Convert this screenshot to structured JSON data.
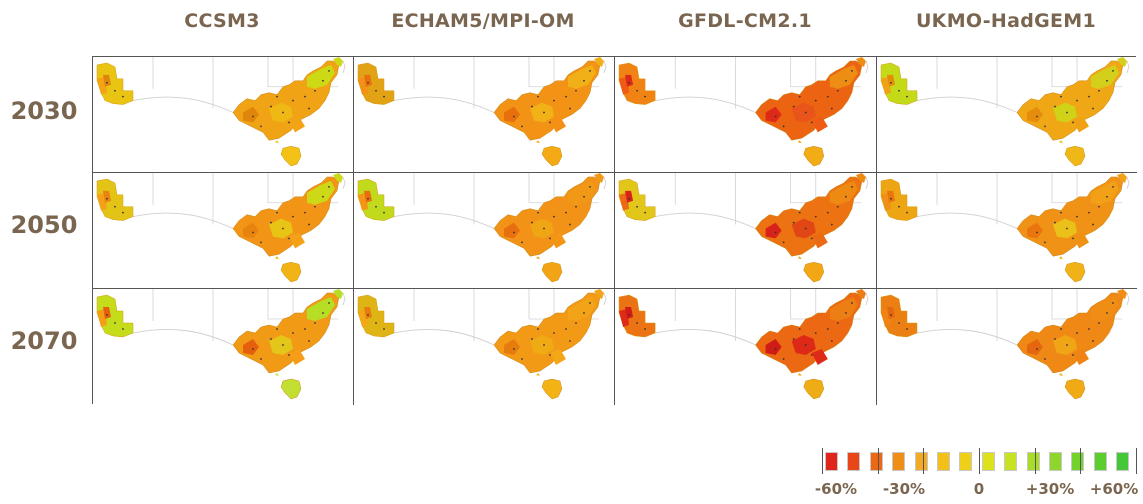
{
  "columns": [
    "CCSM3",
    "ECHAM5/MPI-OM",
    "GFDL-CM2.1",
    "UKMO-HadGEM1"
  ],
  "rows": [
    "2030",
    "2050",
    "2070"
  ],
  "panel_colors": [
    [
      {
        "wa": "#e9c412",
        "west": "#f3a316",
        "east": "#f0a314",
        "mid": "#f0b814",
        "east_hi": "#cdd915",
        "tas": "#f3c215",
        "spot": "#e0850b"
      },
      {
        "wa": "#e2a215",
        "west": "#f49016",
        "east": "#f29315",
        "mid": "#f3b118",
        "east_hi": "#f2b018",
        "tas": "#f4aa15",
        "spot": "#e7700c"
      },
      {
        "wa": "#f08314",
        "west": "#ef5a14",
        "east": "#ec6412",
        "mid": "#e8541a",
        "east_hi": "#ee8d14",
        "tas": "#f2ac15",
        "spot": "#dc2a16"
      },
      {
        "wa": "#c4da18",
        "west": "#eea214",
        "east": "#f0a715",
        "mid": "#cfd217",
        "east_hi": "#d4cf1a",
        "tas": "#efb816",
        "spot": "#e58c0d"
      }
    ],
    [
      {
        "wa": "#e3c316",
        "west": "#f4a118",
        "east": "#f29516",
        "mid": "#e8c515",
        "east_hi": "#cdd816",
        "tas": "#f1b315",
        "spot": "#e8840d"
      },
      {
        "wa": "#c1da1b",
        "west": "#f49516",
        "east": "#f29317",
        "mid": "#f0a515",
        "east_hi": "#f19817",
        "tas": "#f2a414",
        "spot": "#e76f10"
      },
      {
        "wa": "#e2c619",
        "west": "#eb6a14",
        "east": "#ed7312",
        "mid": "#e04714",
        "east_hi": "#ee8a12",
        "tas": "#f3a715",
        "spot": "#d8231a"
      },
      {
        "wa": "#eea514",
        "west": "#ef9114",
        "east": "#f09216",
        "mid": "#e9c119",
        "east_hi": "#f2a017",
        "tas": "#f1b118",
        "spot": "#ea740e"
      }
    ],
    [
      {
        "wa": "#c5dc1b",
        "west": "#f59d17",
        "east": "#f09a16",
        "mid": "#e4c61a",
        "east_hi": "#b5de24",
        "tas": "#c3e032",
        "spot": "#e55f0d"
      },
      {
        "wa": "#dfb415",
        "west": "#f3a717",
        "east": "#f29916",
        "mid": "#efaa14",
        "east_hi": "#f3a317",
        "tas": "#f3b315",
        "spot": "#e67c0e"
      },
      {
        "wa": "#eb7314",
        "west": "#df2a17",
        "east": "#ed6813",
        "mid": "#dd2918",
        "east_hi": "#ec7e14",
        "tas": "#efad15",
        "spot": "#cf1c17"
      },
      {
        "wa": "#ec7f12",
        "west": "#ef8414",
        "east": "#f08816",
        "mid": "#f0a516",
        "east_hi": "#ef8d14",
        "tas": "#f0aa16",
        "spot": "#e4670f"
      }
    ]
  ],
  "legend": {
    "swatch_colors": [
      "#e0251d",
      "#e84518",
      "#ed6812",
      "#ef8f18",
      "#f2ab22",
      "#f3c01a",
      "#efd019",
      "#dde21c",
      "#c6e223",
      "#a8dc28",
      "#8fd62c",
      "#74d22c",
      "#5ccd2f",
      "#44c83a"
    ],
    "labels": [
      "-60%",
      "-30%",
      "0",
      "+30%",
      "+60%"
    ]
  }
}
